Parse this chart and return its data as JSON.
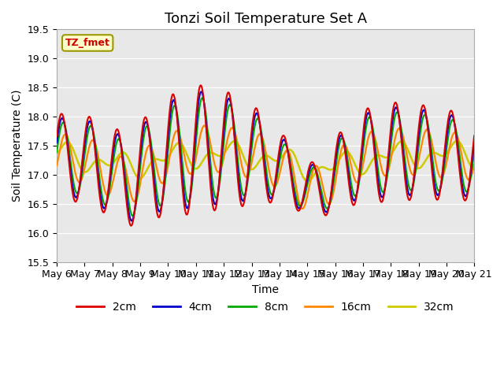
{
  "title": "Tonzi Soil Temperature Set A",
  "xlabel": "Time",
  "ylabel": "Soil Temperature (C)",
  "annotation": "TZ_fmet",
  "ylim": [
    15.5,
    19.5
  ],
  "yticks": [
    15.5,
    16.0,
    16.5,
    17.0,
    17.5,
    18.0,
    18.5,
    19.0,
    19.5
  ],
  "xtick_labels": [
    "May 6",
    "May 7",
    "May 8",
    "May 9",
    "May 10",
    "May 11",
    "May 12",
    "May 13",
    "May 14",
    "May 15",
    "May 16",
    "May 17",
    "May 18",
    "May 19",
    "May 20",
    "May 21"
  ],
  "colors": {
    "2cm": "#dd0000",
    "4cm": "#0000cc",
    "8cm": "#00aa00",
    "16cm": "#ff8800",
    "32cm": "#cccc00"
  },
  "background_color": "#e8e8e8",
  "title_fontsize": 13,
  "label_fontsize": 10,
  "tick_fontsize": 9
}
